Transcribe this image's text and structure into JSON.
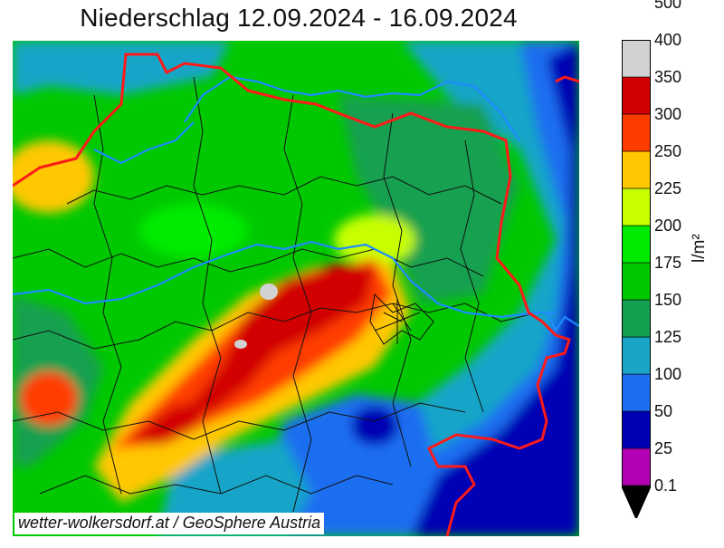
{
  "title": "Niederschlag 12.09.2024 - 16.09.2024",
  "credit": "wetter-wolkersdorf.at / GeoSphere Austria",
  "legend": {
    "unit": "l/m²",
    "ticks": [
      "0.1",
      "25",
      "50",
      "100",
      "125",
      "150",
      "175",
      "200",
      "225",
      "250",
      "300",
      "350",
      "400",
      "500"
    ],
    "bands": [
      {
        "from": "0.1",
        "to": "25",
        "color": "#000000"
      },
      {
        "from": "25",
        "to": "50",
        "color": "#b400b4"
      },
      {
        "from": "50",
        "to": "100",
        "color": "#0000b4"
      },
      {
        "from": "100",
        "to": "125",
        "color": "#1e6ef0"
      },
      {
        "from": "125",
        "to": "150",
        "color": "#19a5c8"
      },
      {
        "from": "150",
        "to": "175",
        "color": "#14a050"
      },
      {
        "from": "175",
        "to": "200",
        "color": "#00c800"
      },
      {
        "from": "200",
        "to": "225",
        "color": "#00eb00"
      },
      {
        "from": "225",
        "to": "250",
        "color": "#c8ff00"
      },
      {
        "from": "250",
        "to": "300",
        "color": "#ffc800"
      },
      {
        "from": "300",
        "to": "350",
        "color": "#ff3c00"
      },
      {
        "from": "350",
        "to": "400",
        "color": "#d20000"
      },
      {
        "from": "400",
        "to": "500",
        "color": "#d2d2d2"
      }
    ]
  },
  "colors": {
    "state_border": "#ff1a1a",
    "rivers": "#1e8cff",
    "district_lines": "#111111"
  }
}
